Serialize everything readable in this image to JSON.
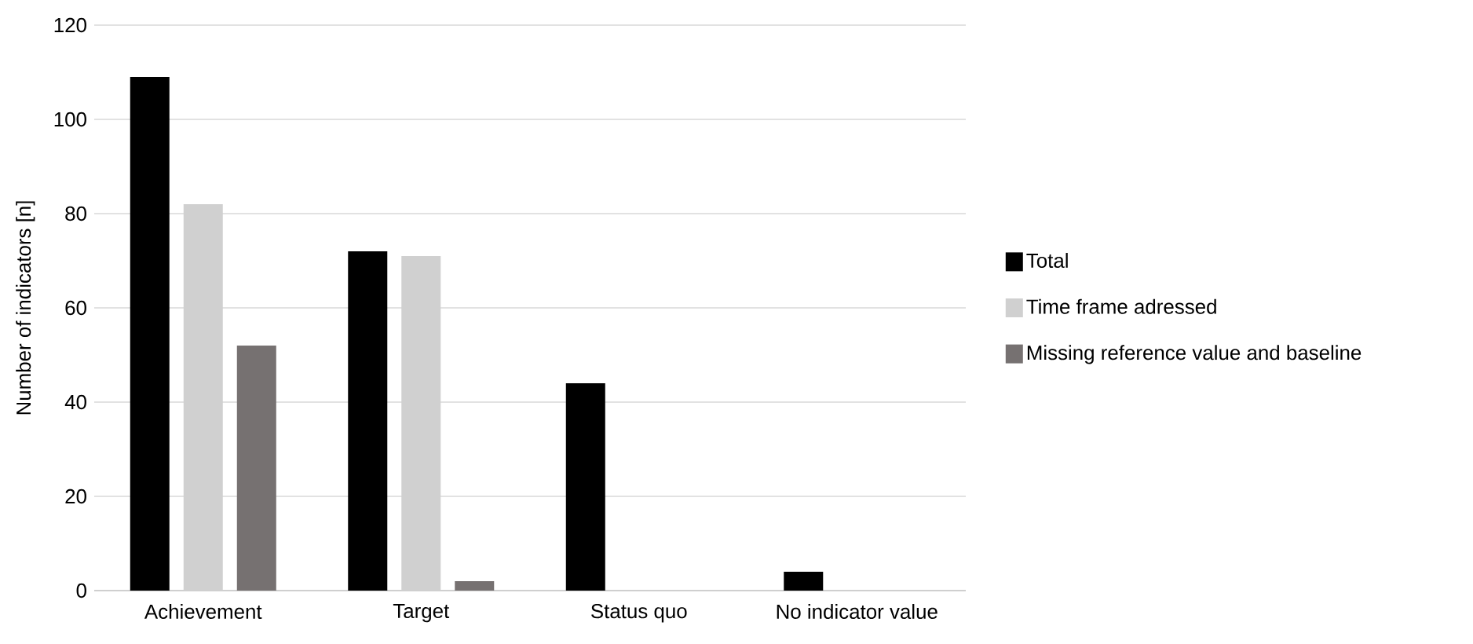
{
  "chart_data": {
    "type": "bar",
    "ylabel": "Number of indicators [n]",
    "categories": [
      "Achievement",
      "Target",
      "Status quo",
      "No indicator value"
    ],
    "series": [
      {
        "name": "Total",
        "color": "#000000",
        "values": [
          109,
          72,
          44,
          4
        ]
      },
      {
        "name": "Time frame adressed",
        "color": "#d0d0d0",
        "values": [
          82,
          71,
          0,
          0
        ]
      },
      {
        "name": "Missing reference value and baseline",
        "color": "#767171",
        "values": [
          52,
          2,
          0,
          0
        ]
      }
    ],
    "ylim": [
      0,
      120
    ],
    "yticks": [
      0,
      20,
      40,
      60,
      80,
      100,
      120
    ],
    "grid": "y",
    "legend": "right"
  }
}
